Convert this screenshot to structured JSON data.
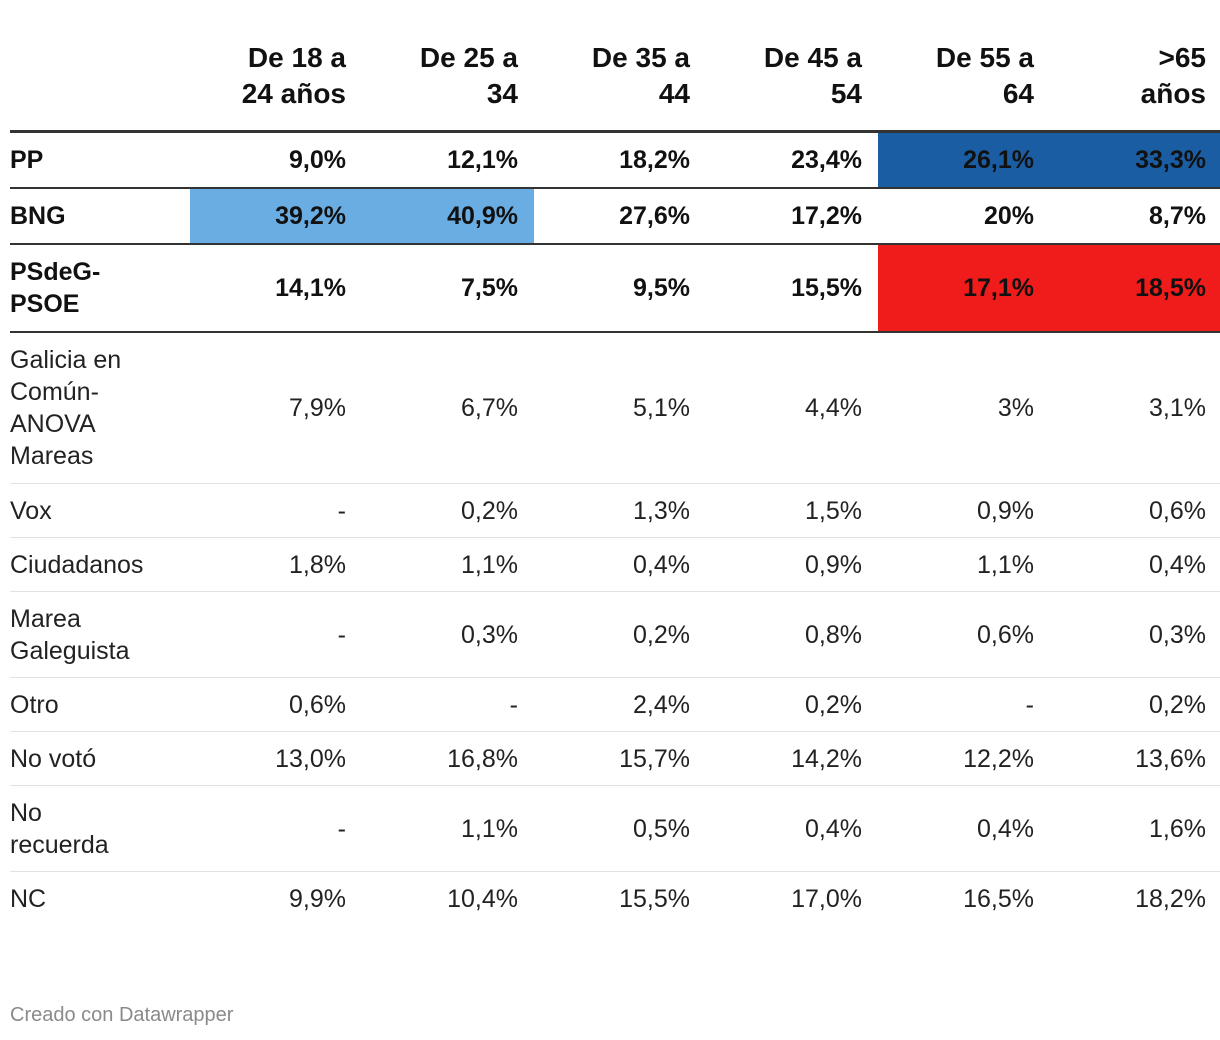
{
  "chart_data": {
    "type": "table",
    "columns": [
      "",
      "De 18 a 24 años",
      "De 25 a 34",
      "De 35 a 44",
      "De 45 a 54",
      "De 55 a 64",
      ">65 años"
    ],
    "rows": [
      {
        "label": "PP",
        "values": [
          "9,0%",
          "12,1%",
          "18,2%",
          "23,4%",
          "26,1%",
          "33,3%"
        ],
        "bold": true,
        "highlight": [
          null,
          null,
          null,
          null,
          "#1b5da3",
          "#1b5da3"
        ]
      },
      {
        "label": "BNG",
        "values": [
          "39,2%",
          "40,9%",
          "27,6%",
          "17,2%",
          "20%",
          "8,7%"
        ],
        "bold": true,
        "highlight": [
          "#6aade2",
          "#6aade2",
          null,
          null,
          null,
          null
        ]
      },
      {
        "label": "PSdeG-PSOE",
        "values": [
          "14,1%",
          "7,5%",
          "9,5%",
          "15,5%",
          "17,1%",
          "18,5%"
        ],
        "bold": true,
        "highlight": [
          null,
          null,
          null,
          null,
          "#f01b1b",
          "#f01b1b"
        ]
      },
      {
        "label": "Galicia en Común-ANOVA Mareas",
        "values": [
          "7,9%",
          "6,7%",
          "5,1%",
          "4,4%",
          "3%",
          "3,1%"
        ],
        "bold": false,
        "highlight": [
          null,
          null,
          null,
          null,
          null,
          null
        ]
      },
      {
        "label": "Vox",
        "values": [
          "-",
          "0,2%",
          "1,3%",
          "1,5%",
          "0,9%",
          "0,6%"
        ],
        "bold": false,
        "highlight": [
          null,
          null,
          null,
          null,
          null,
          null
        ]
      },
      {
        "label": "Ciudadanos",
        "values": [
          "1,8%",
          "1,1%",
          "0,4%",
          "0,9%",
          "1,1%",
          "0,4%"
        ],
        "bold": false,
        "highlight": [
          null,
          null,
          null,
          null,
          null,
          null
        ]
      },
      {
        "label": "Marea Galeguista",
        "values": [
          "-",
          "0,3%",
          "0,2%",
          "0,8%",
          "0,6%",
          "0,3%"
        ],
        "bold": false,
        "highlight": [
          null,
          null,
          null,
          null,
          null,
          null
        ]
      },
      {
        "label": "Otro",
        "values": [
          "0,6%",
          "-",
          "2,4%",
          "0,2%",
          "-",
          "0,2%"
        ],
        "bold": false,
        "highlight": [
          null,
          null,
          null,
          null,
          null,
          null
        ]
      },
      {
        "label": "No votó",
        "values": [
          "13,0%",
          "16,8%",
          "15,7%",
          "14,2%",
          "12,2%",
          "13,6%"
        ],
        "bold": false,
        "highlight": [
          null,
          null,
          null,
          null,
          null,
          null
        ]
      },
      {
        "label": "No recuerda",
        "values": [
          "-",
          "1,1%",
          "0,5%",
          "0,4%",
          "0,4%",
          "1,6%"
        ],
        "bold": false,
        "highlight": [
          null,
          null,
          null,
          null,
          null,
          null
        ]
      },
      {
        "label": "NC",
        "values": [
          "9,9%",
          "10,4%",
          "15,5%",
          "17,0%",
          "16,5%",
          "18,2%"
        ],
        "bold": false,
        "highlight": [
          null,
          null,
          null,
          null,
          null,
          null
        ]
      }
    ]
  },
  "footer": {
    "credit": "Creado con Datawrapper"
  }
}
